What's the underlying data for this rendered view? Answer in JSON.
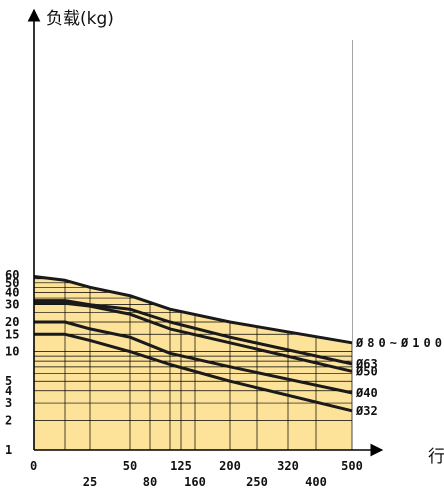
{
  "chart_data": {
    "type": "line",
    "title": "",
    "ylabel": "负载(kg)",
    "xlabel": "行",
    "yscale": "log",
    "xscale": "log",
    "ylim": [
      1,
      60
    ],
    "xlim": [
      0,
      500
    ],
    "y_ticks": [
      {
        "v": 1,
        "label": "1"
      },
      {
        "v": 2,
        "label": "2"
      },
      {
        "v": 3,
        "label": "3"
      },
      {
        "v": 4,
        "label": "4"
      },
      {
        "v": 5,
        "label": "5"
      },
      {
        "v": 10,
        "label": "10"
      },
      {
        "v": 15,
        "label": "15"
      },
      {
        "v": 20,
        "label": "20"
      },
      {
        "v": 30,
        "label": "30"
      },
      {
        "v": 40,
        "label": "40"
      },
      {
        "v": 50,
        "label": "50"
      },
      {
        "v": 60,
        "label": "60"
      }
    ],
    "x_ticks": [
      {
        "v": 0,
        "label": "0",
        "row": 0
      },
      {
        "v": 25,
        "label": "25",
        "row": 1
      },
      {
        "v": 50,
        "label": "50",
        "row": 0
      },
      {
        "v": 80,
        "label": "80",
        "row": 1
      },
      {
        "v": 125,
        "label": "125",
        "row": 0
      },
      {
        "v": 160,
        "label": "160",
        "row": 1
      },
      {
        "v": 200,
        "label": "200",
        "row": 0
      },
      {
        "v": 250,
        "label": "250",
        "row": 1
      },
      {
        "v": 320,
        "label": "320",
        "row": 0
      },
      {
        "v": 400,
        "label": "400",
        "row": 1
      },
      {
        "v": 500,
        "label": "500",
        "row": 0
      }
    ],
    "series": [
      {
        "name": "Ø80~Ø100",
        "points": [
          [
            0,
            58
          ],
          [
            10,
            53
          ],
          [
            25,
            45
          ],
          [
            50,
            37
          ],
          [
            100,
            27
          ],
          [
            200,
            20
          ],
          [
            500,
            12.3
          ]
        ]
      },
      {
        "name": "Ø63",
        "points": [
          [
            0,
            33
          ],
          [
            10,
            33
          ],
          [
            25,
            30
          ],
          [
            50,
            27
          ],
          [
            100,
            20
          ],
          [
            200,
            14
          ],
          [
            500,
            7.5
          ]
        ]
      },
      {
        "name": "Ø50",
        "points": [
          [
            0,
            31
          ],
          [
            10,
            31
          ],
          [
            25,
            29
          ],
          [
            50,
            24
          ],
          [
            100,
            17
          ],
          [
            200,
            12.3
          ],
          [
            500,
            6.3
          ]
        ]
      },
      {
        "name": "Ø40",
        "points": [
          [
            0,
            20
          ],
          [
            10,
            20
          ],
          [
            25,
            17
          ],
          [
            50,
            14
          ],
          [
            100,
            9.6
          ],
          [
            200,
            7
          ],
          [
            500,
            3.8
          ]
        ]
      },
      {
        "name": "Ø32",
        "points": [
          [
            0,
            15
          ],
          [
            10,
            15
          ],
          [
            25,
            13
          ],
          [
            50,
            10
          ],
          [
            100,
            7.4
          ],
          [
            200,
            5
          ],
          [
            500,
            2.5
          ]
        ]
      }
    ],
    "colors": {
      "fill": "#fde29a",
      "grid": "#000000",
      "line": "#1a1a1a"
    }
  }
}
